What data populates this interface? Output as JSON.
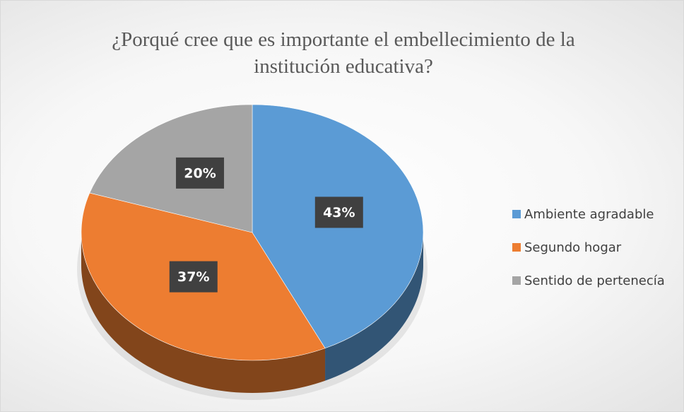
{
  "chart_data": {
    "type": "pie3d",
    "title": "¿Porqué cree que es importante el embellecimiento de la institución educativa?",
    "categories": [
      "Ambiente agradable",
      "Segundo hogar",
      "Sentido de pertenecía"
    ],
    "values": [
      43,
      37,
      20
    ],
    "value_labels": [
      "43%",
      "37%",
      "20%"
    ],
    "colors": [
      "#5b9bd5",
      "#ed7d31",
      "#a5a5a5"
    ],
    "legend": "right"
  }
}
